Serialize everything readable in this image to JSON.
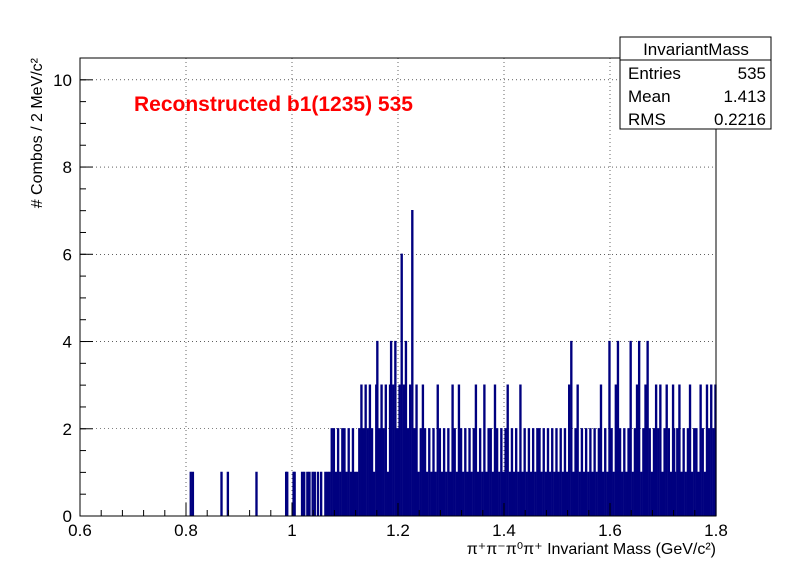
{
  "chart_data": {
    "type": "bar",
    "title": "Reconstructed b1(1235) 535",
    "xlabel": "π⁺π⁻π⁰π⁺ Invariant Mass (GeV/c²)",
    "ylabel": "# Combos / 2 MeV/c²",
    "xlim": [
      0.6,
      1.8
    ],
    "ylim": [
      0,
      10.5
    ],
    "x_ticks": [
      "0.6",
      "0.8",
      "1",
      "1.2",
      "1.4",
      "1.6",
      "1.8"
    ],
    "y_ticks": [
      "0",
      "2",
      "4",
      "6",
      "8",
      "10"
    ],
    "grid": true,
    "bin_width": 0.002,
    "bar_color": "#00007f",
    "stats_box": {
      "title": "InvariantMass",
      "rows": [
        {
          "label": "Entries",
          "value": "535"
        },
        {
          "label": "Mean",
          "value": "1.413"
        },
        {
          "label": "RMS",
          "value": "0.2216"
        }
      ]
    },
    "bins": [
      [
        0.808,
        1
      ],
      [
        0.812,
        1
      ],
      [
        0.866,
        1
      ],
      [
        0.878,
        1
      ],
      [
        0.932,
        1
      ],
      [
        0.988,
        1
      ],
      [
        0.99,
        1
      ],
      [
        1.002,
        1
      ],
      [
        1.004,
        1
      ],
      [
        1.018,
        1
      ],
      [
        1.022,
        1
      ],
      [
        1.028,
        1
      ],
      [
        1.032,
        1
      ],
      [
        1.038,
        1
      ],
      [
        1.042,
        1
      ],
      [
        1.048,
        1
      ],
      [
        1.054,
        1
      ],
      [
        1.062,
        1
      ],
      [
        1.066,
        1
      ],
      [
        1.07,
        1
      ],
      [
        1.074,
        2
      ],
      [
        1.078,
        2
      ],
      [
        1.082,
        1
      ],
      [
        1.086,
        2
      ],
      [
        1.09,
        1
      ],
      [
        1.094,
        2
      ],
      [
        1.098,
        2
      ],
      [
        1.102,
        1
      ],
      [
        1.106,
        2
      ],
      [
        1.11,
        1
      ],
      [
        1.114,
        2
      ],
      [
        1.118,
        1
      ],
      [
        1.122,
        1
      ],
      [
        1.126,
        2
      ],
      [
        1.13,
        3
      ],
      [
        1.134,
        2
      ],
      [
        1.138,
        3
      ],
      [
        1.142,
        2
      ],
      [
        1.146,
        3
      ],
      [
        1.15,
        2
      ],
      [
        1.154,
        1
      ],
      [
        1.158,
        3
      ],
      [
        1.16,
        4
      ],
      [
        1.164,
        2
      ],
      [
        1.168,
        3
      ],
      [
        1.172,
        2
      ],
      [
        1.176,
        3
      ],
      [
        1.18,
        1
      ],
      [
        1.184,
        3
      ],
      [
        1.186,
        4
      ],
      [
        1.19,
        3
      ],
      [
        1.194,
        4
      ],
      [
        1.198,
        2
      ],
      [
        1.202,
        3
      ],
      [
        1.206,
        6
      ],
      [
        1.21,
        3
      ],
      [
        1.214,
        4
      ],
      [
        1.218,
        2
      ],
      [
        1.222,
        3
      ],
      [
        1.226,
        7
      ],
      [
        1.23,
        2
      ],
      [
        1.234,
        3
      ],
      [
        1.238,
        1
      ],
      [
        1.242,
        2
      ],
      [
        1.246,
        3
      ],
      [
        1.25,
        2
      ],
      [
        1.254,
        1
      ],
      [
        1.258,
        2
      ],
      [
        1.262,
        1
      ],
      [
        1.266,
        2
      ],
      [
        1.27,
        1
      ],
      [
        1.274,
        3
      ],
      [
        1.278,
        2
      ],
      [
        1.282,
        1
      ],
      [
        1.286,
        2
      ],
      [
        1.29,
        1
      ],
      [
        1.294,
        2
      ],
      [
        1.298,
        1
      ],
      [
        1.302,
        3
      ],
      [
        1.306,
        2
      ],
      [
        1.31,
        1
      ],
      [
        1.314,
        3
      ],
      [
        1.318,
        2
      ],
      [
        1.322,
        1
      ],
      [
        1.326,
        2
      ],
      [
        1.33,
        1
      ],
      [
        1.334,
        2
      ],
      [
        1.338,
        1
      ],
      [
        1.342,
        2
      ],
      [
        1.346,
        3
      ],
      [
        1.35,
        1
      ],
      [
        1.354,
        2
      ],
      [
        1.358,
        1
      ],
      [
        1.362,
        3
      ],
      [
        1.366,
        1
      ],
      [
        1.37,
        2
      ],
      [
        1.374,
        2
      ],
      [
        1.378,
        1
      ],
      [
        1.382,
        3
      ],
      [
        1.386,
        2
      ],
      [
        1.39,
        1
      ],
      [
        1.394,
        2
      ],
      [
        1.398,
        1
      ],
      [
        1.402,
        2
      ],
      [
        1.406,
        3
      ],
      [
        1.41,
        1
      ],
      [
        1.414,
        2
      ],
      [
        1.418,
        1
      ],
      [
        1.422,
        2
      ],
      [
        1.426,
        1
      ],
      [
        1.43,
        3
      ],
      [
        1.434,
        1
      ],
      [
        1.438,
        2
      ],
      [
        1.442,
        1
      ],
      [
        1.446,
        2
      ],
      [
        1.45,
        1
      ],
      [
        1.454,
        2
      ],
      [
        1.458,
        1
      ],
      [
        1.462,
        2
      ],
      [
        1.466,
        2
      ],
      [
        1.47,
        1
      ],
      [
        1.474,
        2
      ],
      [
        1.478,
        1
      ],
      [
        1.482,
        2
      ],
      [
        1.486,
        1
      ],
      [
        1.49,
        2
      ],
      [
        1.494,
        1
      ],
      [
        1.498,
        2
      ],
      [
        1.502,
        1
      ],
      [
        1.506,
        2
      ],
      [
        1.51,
        1
      ],
      [
        1.514,
        2
      ],
      [
        1.518,
        1
      ],
      [
        1.522,
        3
      ],
      [
        1.526,
        4
      ],
      [
        1.53,
        1
      ],
      [
        1.534,
        2
      ],
      [
        1.538,
        3
      ],
      [
        1.542,
        1
      ],
      [
        1.546,
        2
      ],
      [
        1.55,
        1
      ],
      [
        1.554,
        2
      ],
      [
        1.558,
        1
      ],
      [
        1.562,
        2
      ],
      [
        1.566,
        1
      ],
      [
        1.57,
        2
      ],
      [
        1.574,
        1
      ],
      [
        1.578,
        2
      ],
      [
        1.582,
        3
      ],
      [
        1.586,
        1
      ],
      [
        1.59,
        2
      ],
      [
        1.594,
        1
      ],
      [
        1.598,
        4
      ],
      [
        1.602,
        2
      ],
      [
        1.606,
        1
      ],
      [
        1.61,
        3
      ],
      [
        1.614,
        4
      ],
      [
        1.618,
        2
      ],
      [
        1.622,
        1
      ],
      [
        1.626,
        2
      ],
      [
        1.63,
        1
      ],
      [
        1.634,
        2
      ],
      [
        1.638,
        4
      ],
      [
        1.642,
        1
      ],
      [
        1.646,
        2
      ],
      [
        1.65,
        3
      ],
      [
        1.654,
        4
      ],
      [
        1.658,
        1
      ],
      [
        1.662,
        2
      ],
      [
        1.666,
        3
      ],
      [
        1.67,
        4
      ],
      [
        1.674,
        2
      ],
      [
        1.678,
        1
      ],
      [
        1.682,
        2
      ],
      [
        1.686,
        3
      ],
      [
        1.69,
        2
      ],
      [
        1.694,
        3
      ],
      [
        1.698,
        1
      ],
      [
        1.702,
        2
      ],
      [
        1.706,
        3
      ],
      [
        1.71,
        2
      ],
      [
        1.714,
        1
      ],
      [
        1.718,
        3
      ],
      [
        1.72,
        2
      ],
      [
        1.722,
        1
      ],
      [
        1.726,
        2
      ],
      [
        1.73,
        3
      ],
      [
        1.734,
        1
      ],
      [
        1.738,
        2
      ],
      [
        1.742,
        1
      ],
      [
        1.746,
        2
      ],
      [
        1.75,
        3
      ],
      [
        1.754,
        1
      ],
      [
        1.758,
        2
      ],
      [
        1.762,
        2
      ],
      [
        1.766,
        1
      ],
      [
        1.77,
        3
      ],
      [
        1.774,
        2
      ],
      [
        1.778,
        1
      ],
      [
        1.782,
        3
      ],
      [
        1.786,
        2
      ],
      [
        1.79,
        3
      ],
      [
        1.794,
        2
      ],
      [
        1.798,
        3
      ]
    ]
  }
}
